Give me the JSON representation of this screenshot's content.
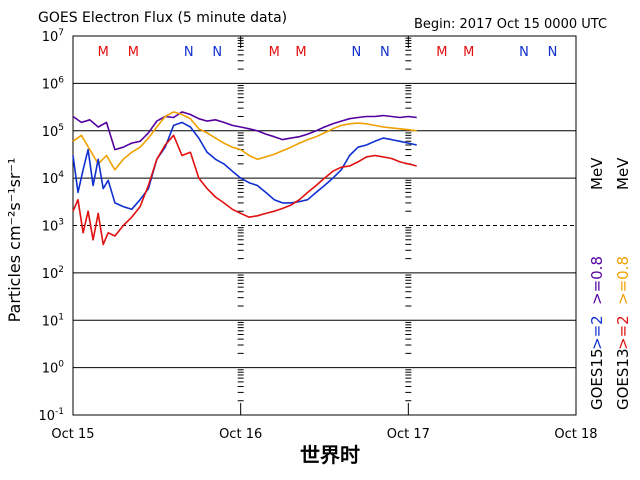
{
  "colors": {
    "ge08_goes15": "#5500a0",
    "ge2_goes15": "#1030d0",
    "ge08_goes13": "#f0a000",
    "ge2_goes13": "#e01010",
    "mark_M": "#e01010",
    "mark_N": "#1030d0"
  },
  "chart_data": {
    "type": "line",
    "title": "GOES Electron Flux (5 minute data)",
    "begin_label": "Begin: 2017 Oct 15 0000 UTC",
    "xlabel": "世界时",
    "ylabel": "Particles cm⁻²s⁻¹sr⁻¹",
    "y_scale": "log",
    "ylim": [
      0.1,
      10000000
    ],
    "xlim_days": [
      0,
      3
    ],
    "x_ticks": [
      "Oct 15",
      "Oct 16",
      "Oct 17",
      "Oct 18"
    ],
    "y_ticks": [
      {
        "base": "10",
        "exp": "-1"
      },
      {
        "base": "10",
        "exp": "0"
      },
      {
        "base": "10",
        "exp": "1"
      },
      {
        "base": "10",
        "exp": "2"
      },
      {
        "base": "10",
        "exp": "3"
      },
      {
        "base": "10",
        "exp": "4"
      },
      {
        "base": "10",
        "exp": "5"
      },
      {
        "base": "10",
        "exp": "6"
      },
      {
        "base": "10",
        "exp": "7"
      }
    ],
    "gridlines_solid": [
      1,
      10,
      100,
      10000,
      100000,
      1000000
    ],
    "gridlines_dashed": [
      1000
    ],
    "markers": [
      {
        "label": "M",
        "day": 0.18
      },
      {
        "label": "M",
        "day": 0.36
      },
      {
        "label": "N",
        "day": 0.69
      },
      {
        "label": "N",
        "day": 0.86
      },
      {
        "label": "M",
        "day": 1.2
      },
      {
        "label": "M",
        "day": 1.36
      },
      {
        "label": "N",
        "day": 1.69
      },
      {
        "label": "N",
        "day": 1.86
      },
      {
        "label": "M",
        "day": 2.2
      },
      {
        "label": "M",
        "day": 2.36
      },
      {
        "label": "N",
        "day": 2.69
      },
      {
        "label": "N",
        "day": 2.86
      }
    ],
    "right_labels": [
      {
        "text": "GOES15",
        "color": "#000000"
      },
      {
        "text": ">=2",
        "color": "#1030d0"
      },
      {
        "text": ">=0.8",
        "color": "#5500a0"
      },
      {
        "text": "MeV",
        "color": "#000000"
      },
      {
        "text": "GOES13",
        "color": "#000000"
      },
      {
        "text": ">=2",
        "color": "#e01010"
      },
      {
        "text": ">=0.8",
        "color": "#f0a000"
      },
      {
        "text": "MeV",
        "color": "#000000"
      }
    ],
    "series": [
      {
        "name": "GOES15 >=0.8 MeV",
        "color": "#5500a0",
        "x": [
          0.0,
          0.05,
          0.1,
          0.15,
          0.2,
          0.25,
          0.3,
          0.35,
          0.4,
          0.45,
          0.5,
          0.55,
          0.6,
          0.65,
          0.7,
          0.75,
          0.8,
          0.85,
          0.9,
          0.95,
          1.0,
          1.05,
          1.1,
          1.15,
          1.2,
          1.25,
          1.3,
          1.35,
          1.4,
          1.45,
          1.5,
          1.55,
          1.6,
          1.65,
          1.7,
          1.75,
          1.8,
          1.85,
          1.9,
          1.95,
          2.0,
          2.05
        ],
        "y": [
          200000,
          150000,
          170000,
          120000,
          150000,
          40000,
          45000,
          55000,
          60000,
          90000,
          160000,
          200000,
          190000,
          250000,
          220000,
          180000,
          160000,
          170000,
          150000,
          130000,
          120000,
          110000,
          100000,
          85000,
          75000,
          65000,
          70000,
          75000,
          85000,
          100000,
          120000,
          140000,
          160000,
          180000,
          190000,
          200000,
          200000,
          210000,
          200000,
          190000,
          200000,
          190000
        ]
      },
      {
        "name": "GOES13 >=0.8 MeV",
        "color": "#f0a000",
        "x": [
          0.0,
          0.05,
          0.1,
          0.15,
          0.2,
          0.25,
          0.3,
          0.35,
          0.4,
          0.45,
          0.5,
          0.55,
          0.6,
          0.65,
          0.7,
          0.75,
          0.8,
          0.85,
          0.9,
          0.95,
          1.0,
          1.05,
          1.1,
          1.15,
          1.2,
          1.25,
          1.3,
          1.35,
          1.4,
          1.45,
          1.5,
          1.55,
          1.6,
          1.65,
          1.7,
          1.75,
          1.8,
          1.85,
          1.9,
          1.95,
          2.0,
          2.05
        ],
        "y": [
          60000,
          80000,
          40000,
          20000,
          30000,
          15000,
          25000,
          35000,
          45000,
          70000,
          120000,
          200000,
          250000,
          220000,
          180000,
          110000,
          90000,
          70000,
          55000,
          45000,
          40000,
          30000,
          25000,
          28000,
          32000,
          38000,
          45000,
          55000,
          65000,
          75000,
          90000,
          110000,
          130000,
          140000,
          145000,
          140000,
          130000,
          120000,
          115000,
          110000,
          105000,
          100000
        ]
      },
      {
        "name": "GOES15 >=2 MeV",
        "color": "#1030d0",
        "x": [
          0.0,
          0.03,
          0.06,
          0.09,
          0.12,
          0.15,
          0.18,
          0.21,
          0.25,
          0.3,
          0.35,
          0.4,
          0.45,
          0.5,
          0.55,
          0.6,
          0.65,
          0.7,
          0.75,
          0.8,
          0.85,
          0.9,
          0.95,
          1.0,
          1.05,
          1.1,
          1.15,
          1.2,
          1.25,
          1.3,
          1.35,
          1.4,
          1.45,
          1.5,
          1.55,
          1.6,
          1.65,
          1.7,
          1.75,
          1.8,
          1.85,
          1.9,
          1.95,
          2.0,
          2.05
        ],
        "y": [
          30000,
          5000,
          15000,
          40000,
          7000,
          25000,
          6000,
          9000,
          3000,
          2500,
          2200,
          3500,
          6000,
          25000,
          45000,
          130000,
          150000,
          120000,
          70000,
          35000,
          25000,
          20000,
          14000,
          10000,
          8000,
          7000,
          5000,
          3500,
          3000,
          3000,
          3200,
          3500,
          5000,
          7000,
          10000,
          15000,
          30000,
          45000,
          50000,
          60000,
          70000,
          65000,
          60000,
          55000,
          50000
        ]
      },
      {
        "name": "GOES13 >=2 MeV",
        "color": "#e01010",
        "x": [
          0.0,
          0.03,
          0.06,
          0.09,
          0.12,
          0.15,
          0.18,
          0.21,
          0.25,
          0.3,
          0.35,
          0.4,
          0.45,
          0.5,
          0.55,
          0.6,
          0.65,
          0.7,
          0.75,
          0.8,
          0.85,
          0.9,
          0.95,
          1.0,
          1.05,
          1.1,
          1.15,
          1.2,
          1.25,
          1.3,
          1.35,
          1.4,
          1.45,
          1.5,
          1.55,
          1.6,
          1.65,
          1.7,
          1.75,
          1.8,
          1.85,
          1.9,
          1.95,
          2.0,
          2.05
        ],
        "y": [
          2000,
          3500,
          700,
          2000,
          500,
          1800,
          400,
          700,
          600,
          1000,
          1500,
          2500,
          7000,
          25000,
          50000,
          80000,
          30000,
          35000,
          10000,
          6000,
          4000,
          3000,
          2200,
          1800,
          1500,
          1600,
          1800,
          2000,
          2300,
          2700,
          3500,
          5000,
          7000,
          10000,
          14000,
          17000,
          18000,
          22000,
          28000,
          30000,
          28000,
          26000,
          22000,
          20000,
          18000
        ]
      }
    ]
  }
}
